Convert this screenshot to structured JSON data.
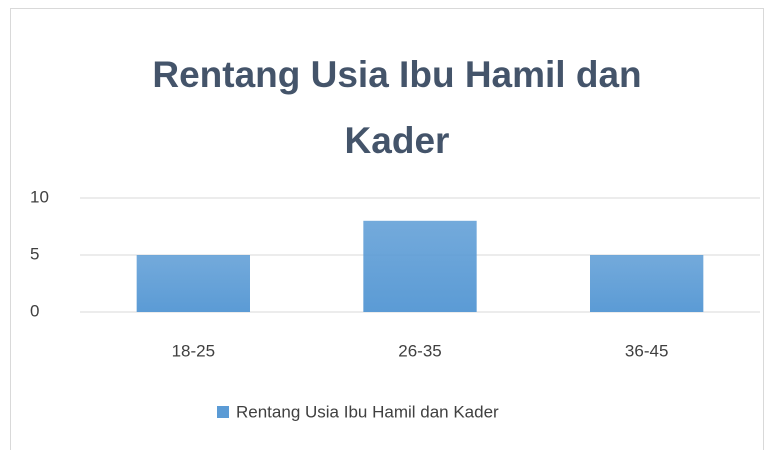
{
  "chart_data": {
    "type": "bar",
    "title": "Rentang Usia Ibu Hamil dan Kader",
    "categories": [
      "18-25",
      "26-35",
      "36-45"
    ],
    "series": [
      {
        "name": "Rentang Usia Ibu Hamil dan Kader",
        "color": "#5b9bd5",
        "values": [
          5,
          8,
          5
        ]
      }
    ],
    "ylim": [
      0,
      10
    ],
    "yticks": [
      0,
      5,
      10
    ],
    "grid": true,
    "legend": "bottom"
  }
}
